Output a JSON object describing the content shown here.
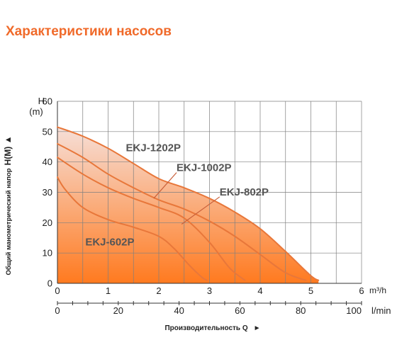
{
  "heading": "Характеристики насосов",
  "chart_data": {
    "type": "line",
    "title": "",
    "ylabel": "Общий манометрический напор",
    "ylabel_unit": "H(M) ▲",
    "y_axis_label": "H",
    "y_axis_unit": "(m)",
    "xlabel": "Производительность Q",
    "xlabel_arrow": "►",
    "x_unit_m3h": "m³/h",
    "x_unit_lmin": "l/min",
    "xlim_m3h": [
      0,
      6
    ],
    "xlim_lmin": [
      0,
      100
    ],
    "ylim": [
      0,
      60
    ],
    "yticks": [
      0,
      10,
      20,
      30,
      40,
      50,
      60
    ],
    "xticks_m3h": [
      0,
      1,
      2,
      3,
      4,
      5,
      6
    ],
    "xticks_lmin": [
      0,
      20,
      40,
      60,
      80,
      100
    ],
    "grid": true,
    "colors": {
      "curve": "#e8773a",
      "pointer": "#c9603a",
      "label": "#555555",
      "grid": "#7f7f7f",
      "fill_top": "#f6dfd8",
      "fill_bottom": "#ff7a1f",
      "heading": "#f06a2a"
    },
    "series": [
      {
        "name": "EKJ-1202P",
        "x": [
          0,
          0.5,
          1.0,
          1.5,
          2.0,
          2.5,
          3.0,
          3.5,
          4.0,
          4.5,
          5.0,
          5.15
        ],
        "y": [
          51.5,
          48.5,
          44.5,
          39.5,
          34.5,
          31.5,
          28,
          23.5,
          18,
          10.5,
          2.5,
          1
        ]
      },
      {
        "name": "EKJ-1002P",
        "x": [
          0,
          0.5,
          1.0,
          1.5,
          2.0,
          2.5,
          3.0,
          3.5,
          4.0,
          4.5,
          4.9
        ],
        "y": [
          46,
          41.5,
          36,
          31.5,
          27.5,
          24.5,
          20.5,
          15.5,
          9.5,
          3.5,
          1
        ]
      },
      {
        "name": "EKJ-802P",
        "x": [
          0,
          0.5,
          1.0,
          1.5,
          2.0,
          2.5,
          3.0,
          3.4,
          3.7
        ],
        "y": [
          41.5,
          36,
          31.5,
          28,
          25,
          21.5,
          13.5,
          5,
          1
        ]
      },
      {
        "name": "EKJ-602P",
        "x": [
          0,
          0.15,
          0.5,
          1.0,
          1.5,
          2.0,
          2.3,
          2.6,
          2.85,
          2.95
        ],
        "y": [
          35,
          31,
          25,
          21,
          18.5,
          15.5,
          11.5,
          6,
          2,
          1
        ]
      }
    ],
    "annotations": [
      {
        "text": "EKJ-1202P",
        "x": 1.35,
        "y": 43.5
      },
      {
        "text": "EKJ-1002P",
        "x": 2.35,
        "y": 37
      },
      {
        "text": "EKJ-802P",
        "x": 3.2,
        "y": 29
      },
      {
        "text": "EKJ-602P",
        "x": 0.55,
        "y": 12.5
      }
    ]
  }
}
